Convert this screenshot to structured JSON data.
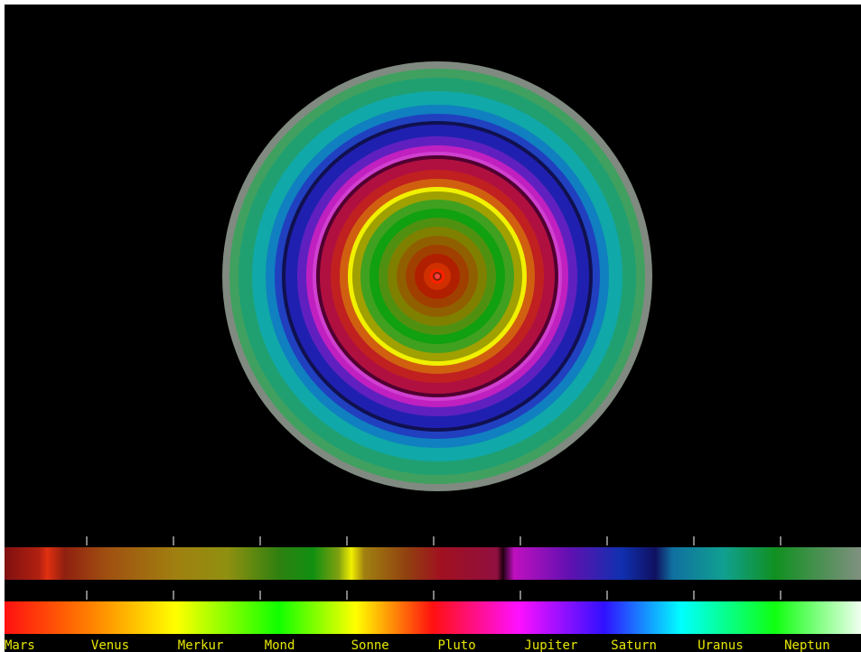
{
  "labels": [
    "Mars",
    "Venus",
    "Merkur",
    "Mond",
    "Sonne",
    "Pluto",
    "Jupiter",
    "Saturn",
    "Uranus",
    "Neptun"
  ]
}
